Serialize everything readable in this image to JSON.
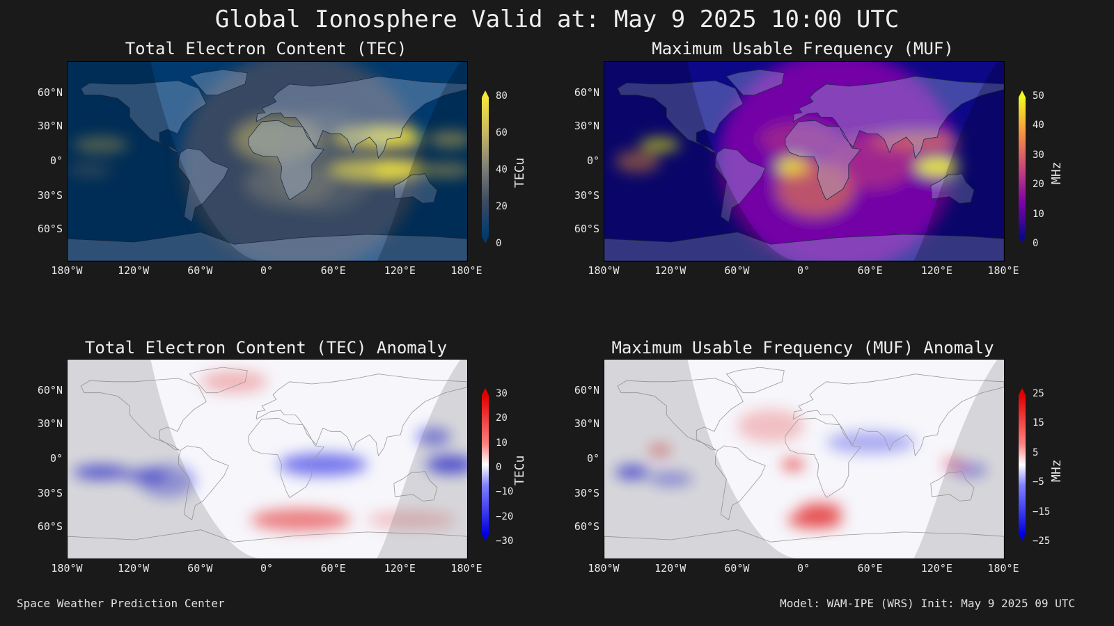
{
  "title": "Global Ionosphere Valid at: May 9 2025 10:00 UTC",
  "panels": [
    {
      "id": "tec",
      "title": "Total Electron Content (TEC)",
      "unit": "TECu",
      "cb_ticks": [
        "80",
        "60",
        "40",
        "20",
        "0"
      ],
      "colormap": "cividis",
      "colors": [
        "#003a6e",
        "#3d4a60",
        "#7f7f78",
        "#c8b864",
        "#f5e73a"
      ]
    },
    {
      "id": "muf",
      "title": "Maximum Usable Frequency (MUF)",
      "unit": "MHz",
      "cb_ticks": [
        "50",
        "40",
        "30",
        "20",
        "10",
        "0"
      ],
      "colormap": "plasma",
      "colors": [
        "#0d0887",
        "#7e03a8",
        "#cc4778",
        "#f89540",
        "#f0f921"
      ]
    },
    {
      "id": "tec-anomaly",
      "title": "Total Electron Content (TEC) Anomaly",
      "unit": "TECu",
      "cb_ticks": [
        "30",
        "20",
        "10",
        "0",
        "−10",
        "−20",
        "−30"
      ],
      "colormap": "bwr",
      "colors": [
        "#0000e0",
        "#ffffff",
        "#e00000"
      ]
    },
    {
      "id": "muf-anomaly",
      "title": "Maximum Usable Frequency (MUF) Anomaly",
      "unit": "MHz",
      "cb_ticks": [
        "25",
        "15",
        "5",
        "−5",
        "−15",
        "−25"
      ],
      "colormap": "bwr",
      "colors": [
        "#0000e0",
        "#ffffff",
        "#e00000"
      ]
    }
  ],
  "lat_labels": [
    "60°N",
    "30°N",
    "0°",
    "30°S",
    "60°S"
  ],
  "lon_labels": [
    "180°W",
    "120°W",
    "60°W",
    "0°",
    "60°E",
    "120°E",
    "180°E"
  ],
  "footer": {
    "left": "Space Weather Prediction Center",
    "right": "Model: WAM-IPE (WRS) Init: May 9 2025 09 UTC"
  }
}
